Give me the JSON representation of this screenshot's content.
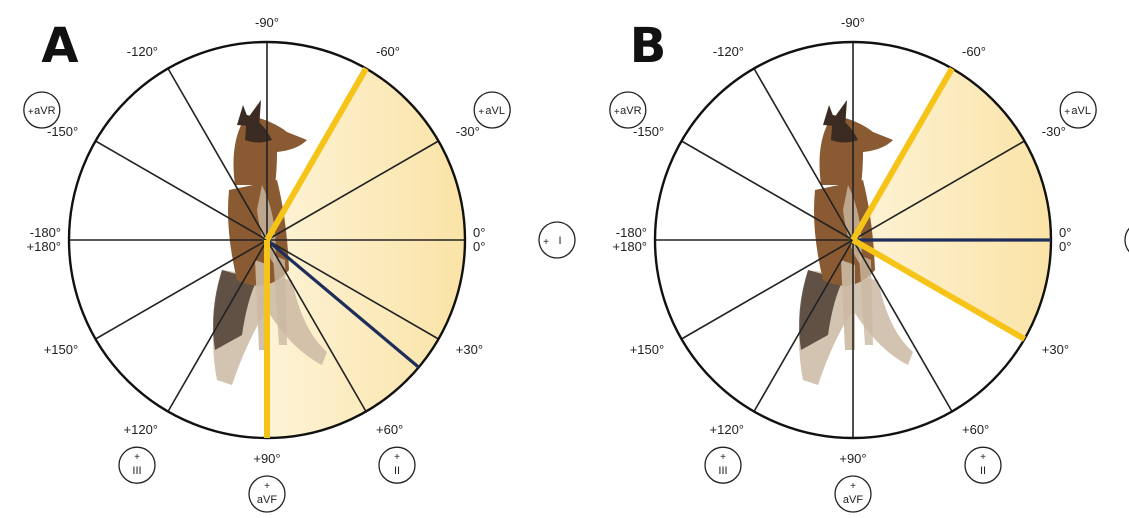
{
  "panels": [
    {
      "letter": "A",
      "sector": {
        "from_deg": -60,
        "to_deg": 90
      },
      "yellow_lines_deg": [
        -60,
        90
      ],
      "navy_lines_deg": [
        40
      ]
    },
    {
      "letter": "B",
      "sector": {
        "from_deg": -60,
        "to_deg": 30
      },
      "yellow_lines_deg": [
        -60,
        30
      ],
      "navy_lines_deg": [
        0
      ]
    }
  ],
  "spoke_angles_deg": [
    -150,
    -120,
    -90,
    -60,
    -30,
    0,
    30,
    60,
    90,
    120,
    150,
    180
  ],
  "angle_labels": [
    {
      "deg": -90,
      "text": "-90°"
    },
    {
      "deg": -60,
      "text": "-60°"
    },
    {
      "deg": -30,
      "text": "-30°"
    },
    {
      "deg": -120,
      "text": "-120°"
    },
    {
      "deg": -150,
      "text": "-150°"
    },
    {
      "deg": 30,
      "text": "+30°"
    },
    {
      "deg": 60,
      "text": "+60°"
    },
    {
      "deg": 90,
      "text": "+90°"
    },
    {
      "deg": 120,
      "text": "+120°"
    },
    {
      "deg": 150,
      "text": "+150°"
    }
  ],
  "right_axis_labels": [
    "0°",
    "0°"
  ],
  "left_axis_labels": [
    "-180°",
    "+180°"
  ],
  "leads": [
    {
      "deg": -150,
      "plus": "+",
      "text": "aVR",
      "plus_inline": true
    },
    {
      "deg": -30,
      "plus": "+",
      "text": "aVL",
      "plus_inline": true
    },
    {
      "deg": 0,
      "plus": "+",
      "text": "I",
      "plus_inline": true
    },
    {
      "deg": 60,
      "plus": "+",
      "text": "II",
      "plus_inline": false
    },
    {
      "deg": 90,
      "plus": "+",
      "text": "aVF",
      "plus_inline": false
    },
    {
      "deg": 120,
      "plus": "+",
      "text": "III",
      "plus_inline": false
    }
  ],
  "colors": {
    "sector_fill": "#fbeab8",
    "sector_fill_edge": "#fdf4d8",
    "yellow_line": "#f6c418",
    "navy_line": "#1f2d5a",
    "spoke": "#222222",
    "circle": "#111111",
    "dog_brown": "#8a5a32",
    "dog_dark": "#3b2b22",
    "dog_light": "#cbb9a3"
  }
}
